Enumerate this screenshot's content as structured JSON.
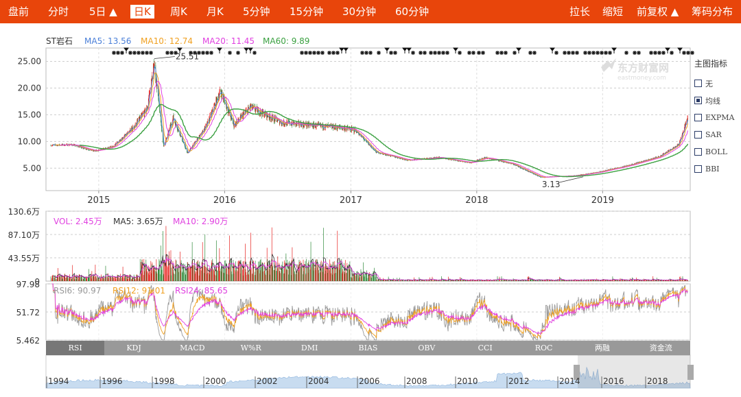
{
  "topbar": {
    "left_items": [
      {
        "label": "盘前",
        "active": false
      },
      {
        "label": "分时",
        "active": false
      },
      {
        "label": "5日 ▲",
        "active": false
      },
      {
        "label": "日K",
        "active": true
      },
      {
        "label": "周K",
        "active": false
      },
      {
        "label": "月K",
        "active": false
      },
      {
        "label": "5分钟",
        "active": false
      },
      {
        "label": "15分钟",
        "active": false
      },
      {
        "label": "30分钟",
        "active": false
      },
      {
        "label": "60分钟",
        "active": false
      }
    ],
    "right_items": [
      {
        "label": "拉长"
      },
      {
        "label": "缩短"
      },
      {
        "label": "前复权 ▲"
      },
      {
        "label": "筹码分布"
      }
    ]
  },
  "main_chart": {
    "stock_name": "ST岩石",
    "legend": [
      {
        "label": "MA5: 13.56",
        "color": "#4a7fd8"
      },
      {
        "label": "MA10: 12.74",
        "color": "#f0a020"
      },
      {
        "label": "MA20: 11.45",
        "color": "#e040e0"
      },
      {
        "label": "MA60: 9.89",
        "color": "#3aa040"
      }
    ],
    "watermark_cn": "东方财富网",
    "watermark_en": "eastmoney.com"
  },
  "side_panel": {
    "title": "主图指标",
    "indicators": [
      {
        "label": "无",
        "checked": false
      },
      {
        "label": "均线",
        "checked": true
      },
      {
        "label": "EXPMA",
        "checked": false
      },
      {
        "label": "SAR",
        "checked": false
      },
      {
        "label": "BOLL",
        "checked": false
      },
      {
        "label": "BBI",
        "checked": false
      }
    ]
  },
  "volume_chart": {
    "legend": [
      {
        "label": "VOL: 2.45万",
        "color": "#e040e0"
      },
      {
        "label": "MA5: 3.65万",
        "color": "#333333"
      },
      {
        "label": "MA10: 2.90万",
        "color": "#e040e0"
      }
    ]
  },
  "rsi_chart": {
    "legend": [
      {
        "label": "RSI6: 90.97",
        "color": "#999999"
      },
      {
        "label": "RSI12: 91.01",
        "color": "#f0a020"
      },
      {
        "label": "RSI24: 85.65",
        "color": "#e040e0"
      }
    ]
  },
  "indicator_tabs": [
    {
      "label": "RSI",
      "active": true
    },
    {
      "label": "KDJ",
      "active": false
    },
    {
      "label": "MACD",
      "active": false
    },
    {
      "label": "W%R",
      "active": false
    },
    {
      "label": "DMI",
      "active": false
    },
    {
      "label": "BIAS",
      "active": false
    },
    {
      "label": "OBV",
      "active": false
    },
    {
      "label": "CCI",
      "active": false
    },
    {
      "label": "ROC",
      "active": false
    },
    {
      "label": "两融",
      "active": false
    },
    {
      "label": "资金流",
      "active": false
    }
  ],
  "navigator": {
    "year_labels": [
      "1994",
      "1996",
      "1998",
      "2000",
      "2002",
      "2004",
      "2006",
      "2008",
      "2010",
      "2012",
      "2014",
      "2016",
      "2018"
    ]
  },
  "colors": {
    "up": "#e8201e",
    "down": "#2f8a3a",
    "ma5": "#4a7fd8",
    "ma10": "#f0a020",
    "ma20": "#e040e0",
    "ma60": "#3aa040",
    "topbar": "#e8450b",
    "navigator_fill": "#c8dcf0"
  },
  "chart_data": [
    {
      "type": "candlestick",
      "title": "ST岩石",
      "x_start": "2014-08",
      "x_end": "2019-09",
      "x_ticks": [
        "2015",
        "2016",
        "2017",
        "2018",
        "2019"
      ],
      "y_ticks": [
        5.0,
        10.0,
        15.0,
        20.0,
        25.0
      ],
      "y_tick_labels": [
        "5.00",
        "10.00",
        "15.00",
        "20.00",
        "25.00"
      ],
      "ylim": [
        0.8,
        27.5
      ],
      "annotations": [
        {
          "label": "25.51",
          "date": "2015-06-11",
          "value": 25.51
        },
        {
          "label": "3.13",
          "date": "2018-07-05",
          "value": 3.13
        }
      ],
      "price_path": [
        [
          "2014-08-15",
          9.3
        ],
        [
          "2014-10-15",
          9.4
        ],
        [
          "2014-12-20",
          8.2
        ],
        [
          "2015-02-10",
          9.0
        ],
        [
          "2015-04-10",
          12.5
        ],
        [
          "2015-05-20",
          16.0
        ],
        [
          "2015-06-11",
          24.5
        ],
        [
          "2015-07-08",
          9.0
        ],
        [
          "2015-08-05",
          14.5
        ],
        [
          "2015-09-15",
          7.8
        ],
        [
          "2015-11-10",
          13.0
        ],
        [
          "2015-12-20",
          19.5
        ],
        [
          "2016-01-28",
          13.0
        ],
        [
          "2016-03-15",
          16.5
        ],
        [
          "2016-06-15",
          13.5
        ],
        [
          "2016-09-15",
          13.0
        ],
        [
          "2016-12-15",
          12.5
        ],
        [
          "2017-01-15",
          12.0
        ],
        [
          "2017-03-15",
          8.0
        ],
        [
          "2017-06-15",
          6.5
        ],
        [
          "2017-09-15",
          7.0
        ],
        [
          "2017-12-15",
          6.0
        ],
        [
          "2018-01-25",
          7.0
        ],
        [
          "2018-04-15",
          5.8
        ],
        [
          "2018-07-05",
          3.3
        ],
        [
          "2018-10-15",
          3.6
        ],
        [
          "2018-12-15",
          4.2
        ],
        [
          "2019-03-15",
          5.5
        ],
        [
          "2019-06-15",
          7.2
        ],
        [
          "2019-08-10",
          9.5
        ],
        [
          "2019-09-05",
          14.5
        ]
      ],
      "moving_averages": [
        {
          "name": "MA5",
          "latest": 13.56
        },
        {
          "name": "MA10",
          "latest": 12.74
        },
        {
          "name": "MA20",
          "latest": 11.45
        },
        {
          "name": "MA60",
          "latest": 9.89
        }
      ]
    },
    {
      "type": "bar",
      "title": "VOL",
      "unit": "万",
      "y_ticks": [
        0,
        43.55,
        87.1,
        130.6
      ],
      "y_tick_labels": [
        "0",
        "43.55万",
        "87.10万",
        "130.6万"
      ],
      "ylim": [
        0,
        130.6
      ],
      "latest": {
        "VOL": 2.45,
        "MA5": 3.65,
        "MA10": 2.9
      }
    },
    {
      "type": "line",
      "title": "RSI",
      "y_ticks": [
        5.462,
        51.72,
        97.98
      ],
      "y_tick_labels": [
        "5.462",
        "51.72",
        "97.98"
      ],
      "ylim": [
        5.462,
        97.98
      ],
      "series": [
        {
          "name": "RSI6",
          "latest": 90.97
        },
        {
          "name": "RSI12",
          "latest": 91.01
        },
        {
          "name": "RSI24",
          "latest": 85.65
        }
      ]
    }
  ]
}
